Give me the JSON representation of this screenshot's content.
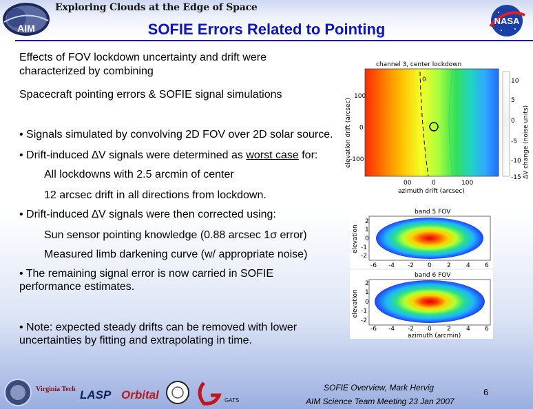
{
  "header": {
    "banner": "Exploring Clouds at the Edge of Space",
    "aim_logo_text": "AIM",
    "nasa_logo_text": "NASA",
    "title": "SOFIE Errors Related to Pointing"
  },
  "body": {
    "intro_line1": "Effects of FOV lockdown uncertainty and drift were",
    "intro_line2": "characterized by combining",
    "combine": "Spacecraft pointing errors &  SOFIE signal simulations",
    "b1": "• Signals simulated by convolving 2D FOV over 2D solar source.",
    "b2_pre": "• Drift-induced ∆V signals were determined as ",
    "b2_u": "worst case",
    "b2_post": " for:",
    "b2_s1": "All lockdowns with 2.5 arcmin of center",
    "b2_s2": "12 arcsec drift in all directions from lockdown.",
    "b3": "• Drift-induced ∆V signals were then corrected using:",
    "b3_s1": "Sun sensor pointing knowledge (0.88 arcsec 1σ error)",
    "b3_s2": "Measured limb darkening curve (w/ appropriate noise)",
    "b4_line1": "• The remaining signal error is now carried in SOFIE",
    "b4_line2": "performance estimates.",
    "b5_line1": "• Note: expected steady drifts can be removed with lower",
    "b5_line2": "uncertainties by fitting and extrapolating in time."
  },
  "fig_top": {
    "title": "channel   3, center lockdown",
    "ylabel": "elevation drift (arcsec)",
    "xlabel": "azimuth drift (arcsec)",
    "cbar_label": "ΔV change (noise units)",
    "yticks": [
      "100",
      "0",
      "-100"
    ],
    "xticks": [
      "00",
      "0",
      "100"
    ],
    "cbar_ticks": [
      "10",
      "5",
      "0",
      "-5",
      "-10",
      "-15"
    ],
    "contour_label": "0"
  },
  "fig_mid": {
    "title": "band   5 FOV",
    "ylabel": "elevation",
    "yticks": [
      "2",
      "1",
      "0",
      "-1",
      "-2"
    ],
    "xticks": [
      "-6",
      "-4",
      "-2",
      "0",
      "2",
      "4",
      "6"
    ]
  },
  "fig_bot": {
    "title": "band   6 FOV",
    "ylabel": "elevation",
    "xlabel": "azimuth (arcmin)",
    "yticks": [
      "2",
      "1",
      "0",
      "-1",
      "-2"
    ],
    "xticks": [
      "-6",
      "-4",
      "-2",
      "0",
      "2",
      "4",
      "6"
    ]
  },
  "footer": {
    "logos": [
      "Virginia Tech",
      "LASP",
      "Orbital",
      "GATS"
    ],
    "presenter": "SOFIE Overview, Mark Hervig",
    "meeting": "AIM Science Team Meeting 23 Jan 2007",
    "page_number": "6"
  }
}
